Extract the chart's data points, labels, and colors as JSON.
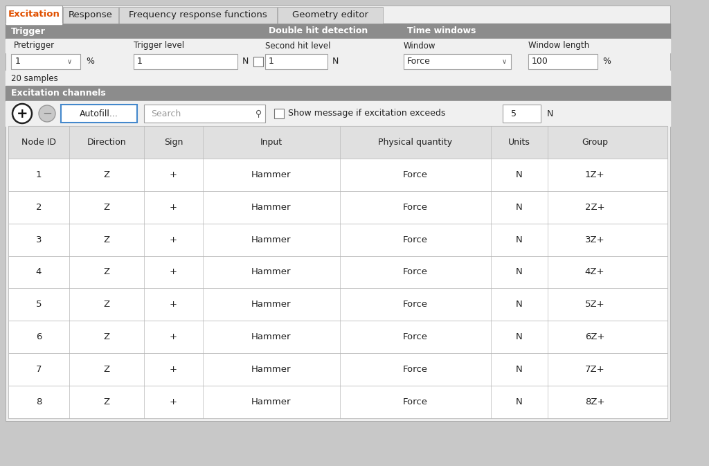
{
  "bg_color": "#c8c8c8",
  "panel_bg": "#f0f0f0",
  "white": "#ffffff",
  "tab_active_text": "#e05000",
  "tab_inactive_text": "#222222",
  "section_header_bg": "#8c8c8c",
  "section_header_text": "#ffffff",
  "table_header_bg": "#e0e0e0",
  "table_border": "#b8b8b8",
  "cell_bg": "#ffffff",
  "cell_text": "#222222",
  "input_bg": "#ffffff",
  "input_border": "#a0a0a0",
  "autofill_border": "#4488cc",
  "tabs": [
    "Excitation",
    "Response",
    "Frequency response functions",
    "Geometry editor"
  ],
  "tab_active": "Excitation",
  "trigger_label": "Trigger",
  "double_hit_label": "Double hit detection",
  "time_windows_label": "Time windows",
  "pretrigger_label": "Pretrigger",
  "pretrigger_value": "1",
  "pretrigger_unit": "%",
  "trigger_level_label": "Trigger level",
  "trigger_level_value": "1",
  "trigger_level_unit": "N",
  "second_hit_label": "Second hit level",
  "second_hit_value": "1",
  "second_hit_unit": "N",
  "window_label": "Window",
  "window_value": "Force",
  "window_length_label": "Window length",
  "window_length_value": "100",
  "window_length_unit": "%",
  "samples_text": "20 samples",
  "excitation_channels_label": "Excitation channels",
  "autofill_label": "Autofill...",
  "search_placeholder": "Search",
  "show_message_text": "Show message if excitation exceeds",
  "show_message_value": "5",
  "show_message_unit": "N",
  "col_headers": [
    "Node ID",
    "Direction",
    "Sign",
    "Input",
    "Physical quantity",
    "Units",
    "Group"
  ],
  "table_data": [
    [
      "1",
      "Z",
      "+",
      "Hammer",
      "Force",
      "N",
      "1Z+"
    ],
    [
      "2",
      "Z",
      "+",
      "Hammer",
      "Force",
      "N",
      "2Z+"
    ],
    [
      "3",
      "Z",
      "+",
      "Hammer",
      "Force",
      "N",
      "3Z+"
    ],
    [
      "4",
      "Z",
      "+",
      "Hammer",
      "Force",
      "N",
      "4Z+"
    ],
    [
      "5",
      "Z",
      "+",
      "Hammer",
      "Force",
      "N",
      "5Z+"
    ],
    [
      "6",
      "Z",
      "+",
      "Hammer",
      "Force",
      "N",
      "6Z+"
    ],
    [
      "7",
      "Z",
      "+",
      "Hammer",
      "Force",
      "N",
      "7Z+"
    ],
    [
      "8",
      "Z",
      "+",
      "Hammer",
      "Force",
      "N",
      "8Z+"
    ]
  ]
}
